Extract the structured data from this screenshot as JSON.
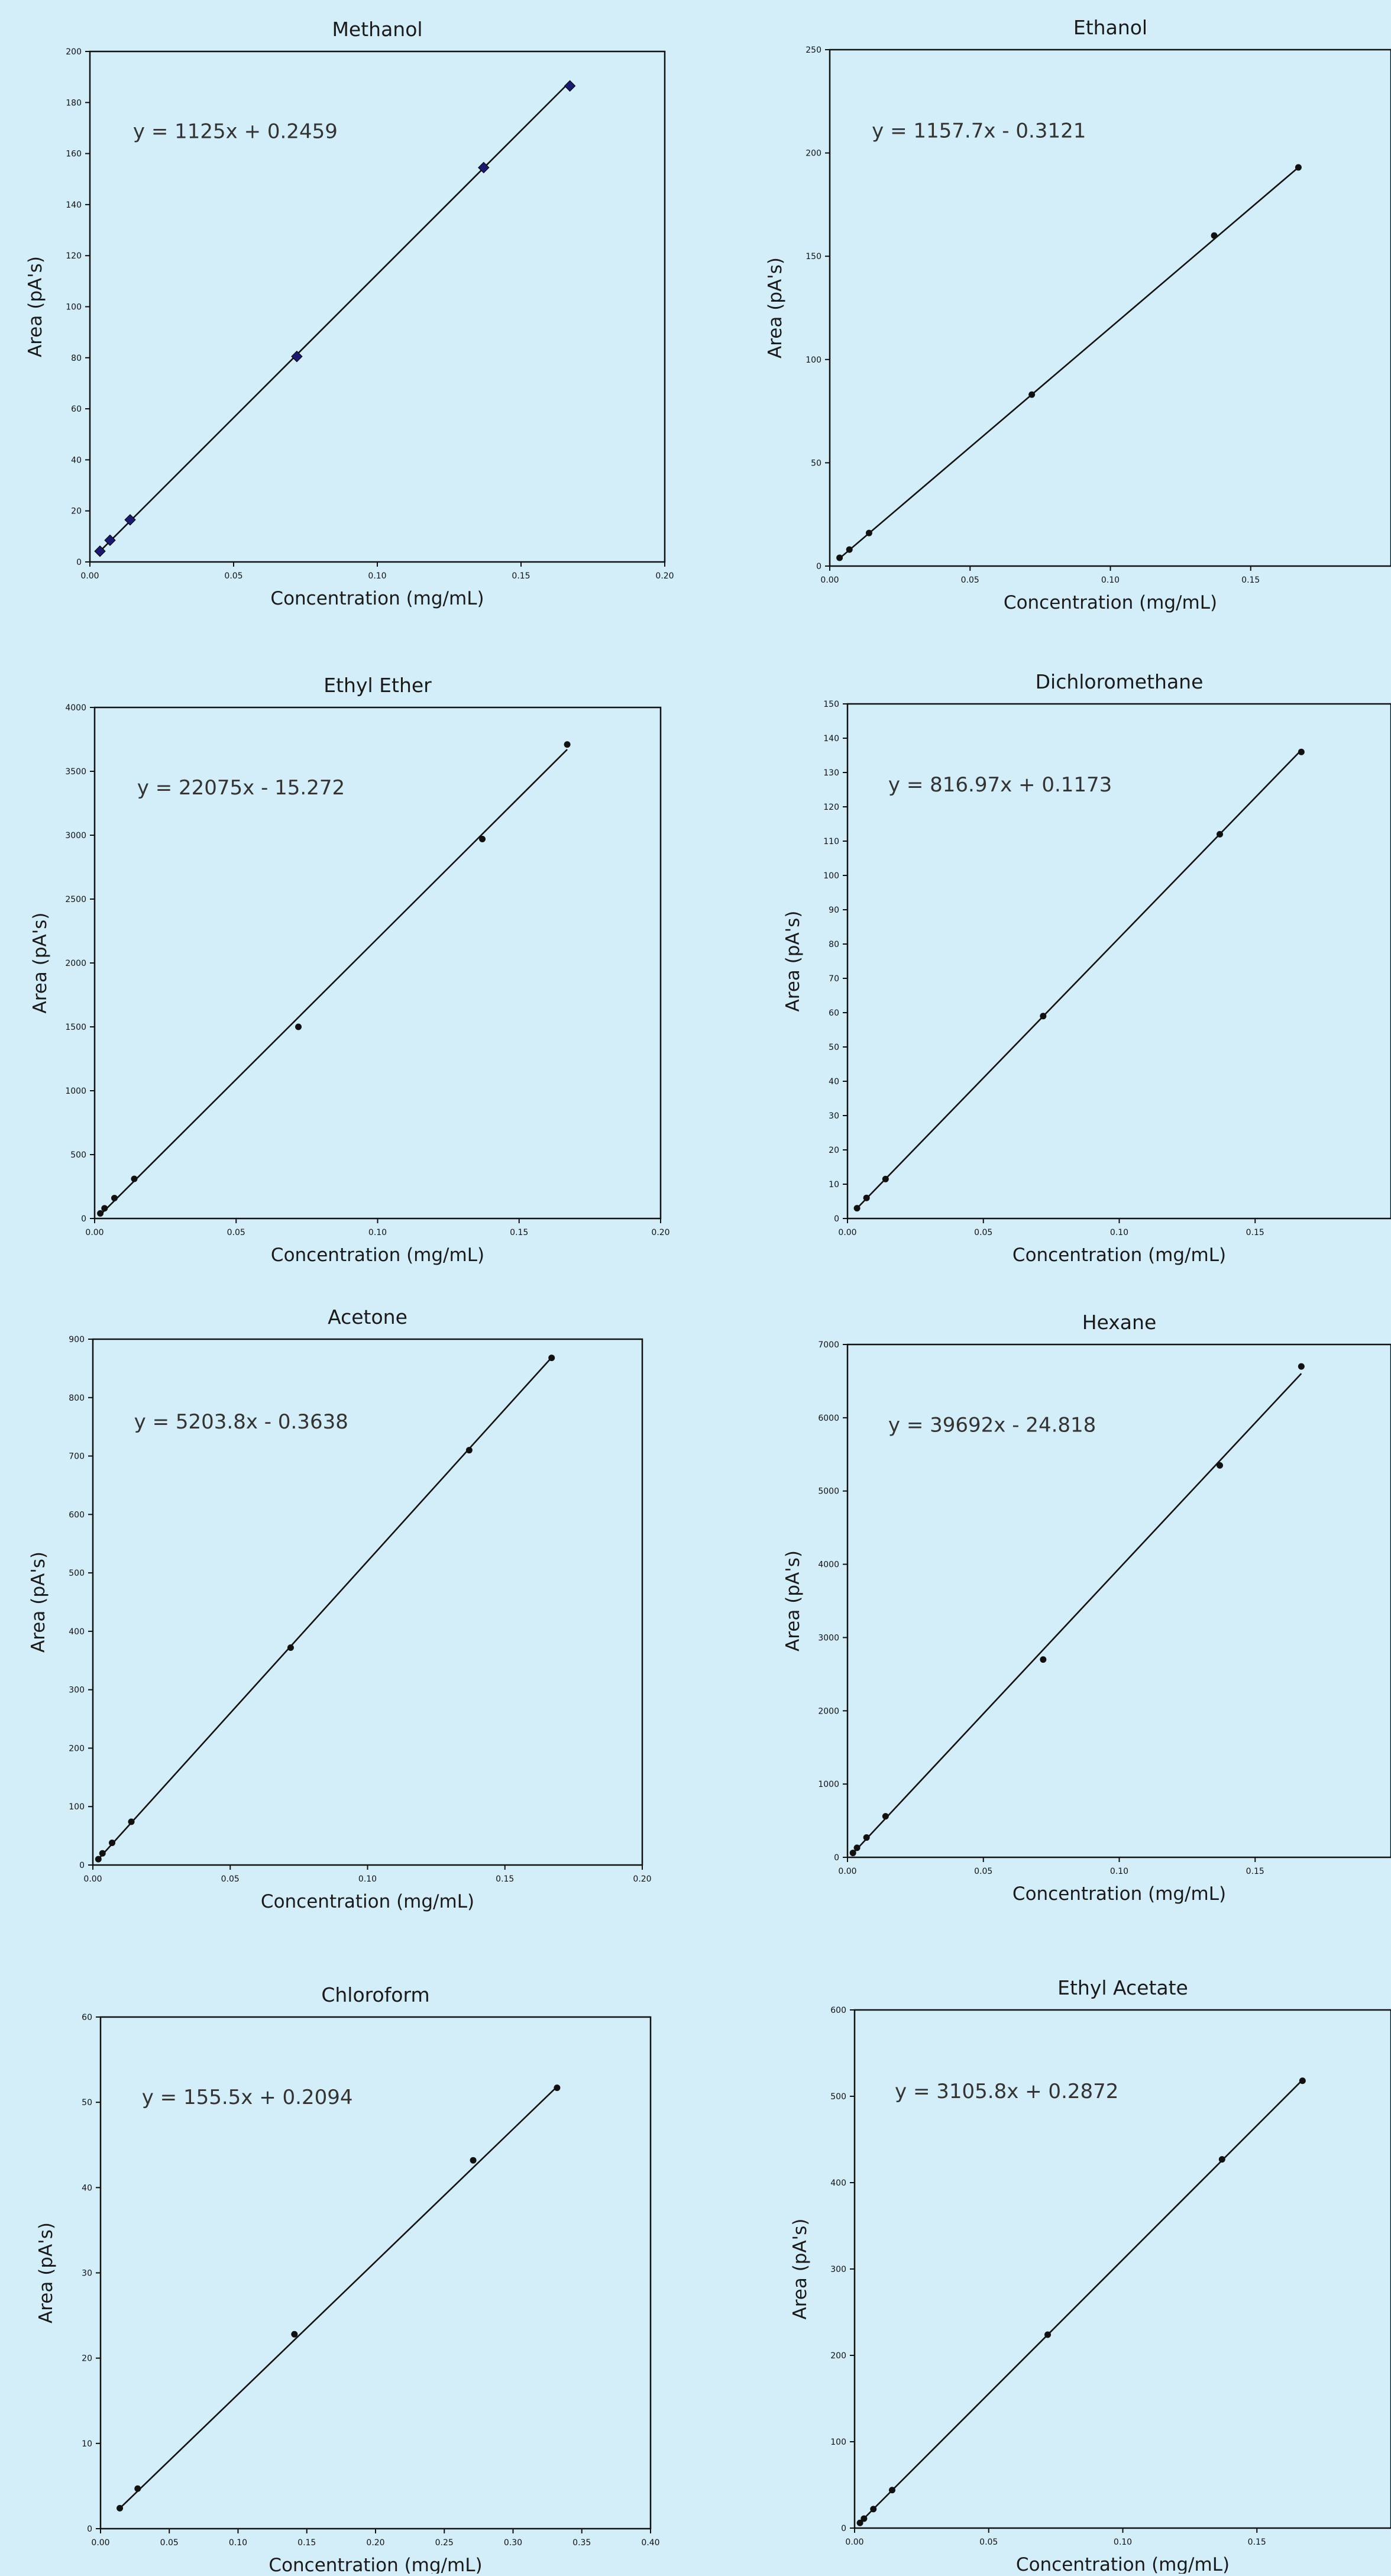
{
  "chart_data": [
    {
      "type": "scatter",
      "title": "Methanol",
      "xlabel": "Concentration (mg/mL)",
      "ylabel": "Area (pA's)",
      "xlim": [
        0,
        0.2
      ],
      "ylim": [
        0,
        200
      ],
      "xticks": [
        "0.00",
        "0.05",
        "0.10",
        "0.15",
        "0.20"
      ],
      "yticks": [
        "0",
        "20",
        "40",
        "60",
        "80",
        "100",
        "120",
        "140",
        "160",
        "180",
        "200"
      ],
      "equation": "y = 1125x + 0.2459",
      "trend": {
        "slope": 1125,
        "intercept": 0.2459
      },
      "marker": "diamond",
      "marker_color": "#1a1a6e",
      "points": [
        [
          0.0035,
          4.2
        ],
        [
          0.007,
          8.5
        ],
        [
          0.014,
          16.5
        ],
        [
          0.072,
          80.5
        ],
        [
          0.137,
          154.5
        ],
        [
          0.167,
          186.5
        ]
      ]
    },
    {
      "type": "scatter",
      "title": "Ethanol",
      "xlabel": "Concentration (mg/mL)",
      "ylabel": "Area (pA's)",
      "xlim": [
        0,
        0.2
      ],
      "ylim": [
        0,
        250
      ],
      "xticks": [
        "0.00",
        "0.05",
        "0.10",
        "0.15"
      ],
      "yticks": [
        "0",
        "50",
        "100",
        "150",
        "200",
        "250"
      ],
      "equation": "y = 1157.7x - 0.3121",
      "trend": {
        "slope": 1157.7,
        "intercept": -0.3121
      },
      "marker": "dot",
      "marker_color": "#111111",
      "points": [
        [
          0.0035,
          4.0
        ],
        [
          0.007,
          8.0
        ],
        [
          0.014,
          16.0
        ],
        [
          0.072,
          83.0
        ],
        [
          0.137,
          160.0
        ],
        [
          0.167,
          193.0
        ]
      ]
    },
    {
      "type": "scatter",
      "title": "Ethyl Ether",
      "xlabel": "Concentration (mg/mL)",
      "ylabel": "Area (pA's)",
      "xlim": [
        0,
        0.2
      ],
      "ylim": [
        0,
        4000
      ],
      "xticks": [
        "0.00",
        "0.05",
        "0.10",
        "0.15",
        "0.20"
      ],
      "yticks": [
        "0",
        "500",
        "1000",
        "1500",
        "2000",
        "2500",
        "3000",
        "3500",
        "4000"
      ],
      "equation": "y = 22075x - 15.272",
      "trend": {
        "slope": 22075,
        "intercept": -15.272
      },
      "marker": "dot",
      "marker_color": "#111111",
      "points": [
        [
          0.002,
          40
        ],
        [
          0.0035,
          80
        ],
        [
          0.007,
          160
        ],
        [
          0.014,
          310
        ],
        [
          0.072,
          1500
        ],
        [
          0.137,
          2970
        ],
        [
          0.167,
          3710
        ]
      ]
    },
    {
      "type": "scatter",
      "title": "Dichloromethane",
      "xlabel": "Concentration (mg/mL)",
      "ylabel": "Area (pA's)",
      "xlim": [
        0,
        0.2
      ],
      "ylim": [
        0,
        150
      ],
      "xticks": [
        "0.00",
        "0.05",
        "0.10",
        "0.15"
      ],
      "yticks": [
        "0",
        "10",
        "20",
        "30",
        "40",
        "50",
        "60",
        "70",
        "80",
        "90",
        "100",
        "110",
        "120",
        "130",
        "140",
        "150"
      ],
      "equation": "y = 816.97x + 0.1173",
      "trend": {
        "slope": 816.97,
        "intercept": 0.1173
      },
      "marker": "dot",
      "marker_color": "#111111",
      "points": [
        [
          0.0035,
          3.0
        ],
        [
          0.007,
          6.0
        ],
        [
          0.014,
          11.5
        ],
        [
          0.072,
          59.0
        ],
        [
          0.137,
          112.0
        ],
        [
          0.167,
          136.0
        ]
      ]
    },
    {
      "type": "scatter",
      "title": "Acetone",
      "xlabel": "Concentration (mg/mL)",
      "ylabel": "Area (pA's)",
      "xlim": [
        0,
        0.2
      ],
      "ylim": [
        0,
        900
      ],
      "xticks": [
        "0.00",
        "0.05",
        "0.10",
        "0.15",
        "0.20"
      ],
      "yticks": [
        "0",
        "100",
        "200",
        "300",
        "400",
        "500",
        "600",
        "700",
        "800",
        "900"
      ],
      "equation": "y = 5203.8x - 0.3638",
      "trend": {
        "slope": 5203.8,
        "intercept": -0.3638
      },
      "marker": "dot",
      "marker_color": "#111111",
      "points": [
        [
          0.002,
          10
        ],
        [
          0.0035,
          20
        ],
        [
          0.007,
          38
        ],
        [
          0.014,
          74
        ],
        [
          0.072,
          372
        ],
        [
          0.137,
          710
        ],
        [
          0.167,
          868
        ]
      ]
    },
    {
      "type": "scatter",
      "title": "Hexane",
      "xlabel": "Concentration (mg/mL)",
      "ylabel": "Area (pA's)",
      "xlim": [
        0,
        0.2
      ],
      "ylim": [
        0,
        7000
      ],
      "xticks": [
        "0.00",
        "0.05",
        "0.10",
        "0.15"
      ],
      "yticks": [
        "0",
        "1000",
        "2000",
        "3000",
        "4000",
        "5000",
        "6000",
        "7000"
      ],
      "equation": "y = 39692x - 24.818",
      "trend": {
        "slope": 39692,
        "intercept": -24.818
      },
      "marker": "dot",
      "marker_color": "#111111",
      "points": [
        [
          0.002,
          60
        ],
        [
          0.0035,
          130
        ],
        [
          0.007,
          270
        ],
        [
          0.014,
          560
        ],
        [
          0.072,
          2700
        ],
        [
          0.137,
          5350
        ],
        [
          0.167,
          6700
        ]
      ]
    },
    {
      "type": "scatter",
      "title": "Chloroform",
      "xlabel": "Concentration (mg/mL)",
      "ylabel": "Area (pA's)",
      "xlim": [
        0,
        0.4
      ],
      "ylim": [
        0,
        60
      ],
      "xticks": [
        "0.00",
        "0.05",
        "0.10",
        "0.15",
        "0.20",
        "0.25",
        "0.30",
        "0.35",
        "0.40"
      ],
      "yticks": [
        "0",
        "10",
        "20",
        "30",
        "40",
        "50",
        "60"
      ],
      "equation": "y = 155.5x + 0.2094",
      "trend": {
        "slope": 155.5,
        "intercept": 0.2094
      },
      "marker": "dot",
      "marker_color": "#111111",
      "points": [
        [
          0.014,
          2.4
        ],
        [
          0.027,
          4.7
        ],
        [
          0.141,
          22.8
        ],
        [
          0.271,
          43.2
        ],
        [
          0.332,
          51.7
        ]
      ]
    },
    {
      "type": "scatter",
      "title": "Ethyl Acetate",
      "xlabel": "Concentration (mg/mL)",
      "ylabel": "Area (pA's)",
      "xlim": [
        0,
        0.2
      ],
      "ylim": [
        0,
        600
      ],
      "xticks": [
        "0.00",
        "0.05",
        "0.10",
        "0.15"
      ],
      "yticks": [
        "0",
        "100",
        "200",
        "300",
        "400",
        "500",
        "600"
      ],
      "equation": "y = 3105.8x + 0.2872",
      "trend": {
        "slope": 3105.8,
        "intercept": 0.2872
      },
      "marker": "dot",
      "marker_color": "#111111",
      "points": [
        [
          0.002,
          6
        ],
        [
          0.0035,
          11
        ],
        [
          0.007,
          22
        ],
        [
          0.014,
          44
        ],
        [
          0.072,
          224
        ],
        [
          0.137,
          427
        ],
        [
          0.167,
          518
        ]
      ]
    }
  ]
}
